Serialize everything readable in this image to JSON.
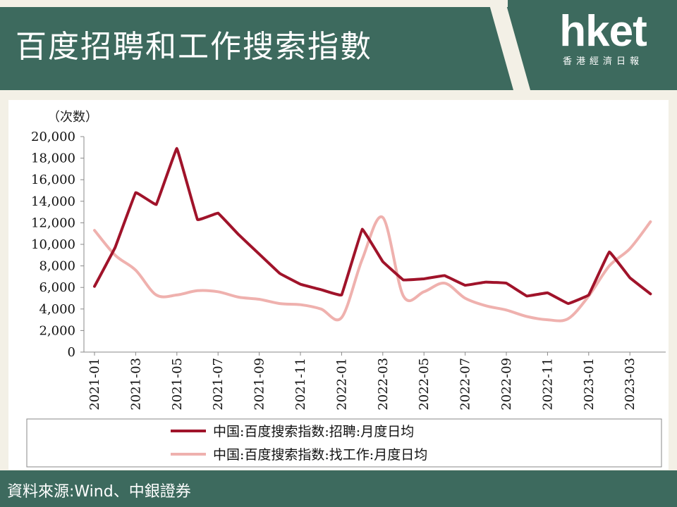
{
  "header": {
    "title": "百度招聘和工作搜索指數",
    "logo_main": "hket",
    "logo_sub": "香港經濟日報"
  },
  "footer": {
    "source": "資料來源:Wind、中銀證券"
  },
  "colors": {
    "header_bg": "#3d6a5e",
    "series_1": "#a0132a",
    "series_2": "#efb1ae"
  },
  "chart_data": {
    "type": "line",
    "unit_label": "（次数）",
    "ylim": [
      0,
      20000
    ],
    "yticks": [
      "0",
      "2,000",
      "4,000",
      "6,000",
      "8,000",
      "10,000",
      "12,000",
      "14,000",
      "16,000",
      "18,000",
      "20,000"
    ],
    "xtick_labels": [
      "2021-01",
      "2021-03",
      "2021-05",
      "2021-07",
      "2021-09",
      "2021-11",
      "2022-01",
      "2022-03",
      "2022-05",
      "2022-07",
      "2022-09",
      "2022-11",
      "2023-01",
      "2023-03"
    ],
    "x": [
      "2021-01",
      "2021-02",
      "2021-03",
      "2021-04",
      "2021-05",
      "2021-06",
      "2021-07",
      "2021-08",
      "2021-09",
      "2021-10",
      "2021-11",
      "2021-12",
      "2022-01",
      "2022-02",
      "2022-03",
      "2022-04",
      "2022-05",
      "2022-06",
      "2022-07",
      "2022-08",
      "2022-09",
      "2022-10",
      "2022-11",
      "2022-12",
      "2023-01",
      "2023-02",
      "2023-03",
      "2023-04"
    ],
    "grid": false,
    "legend_position": "bottom",
    "series": [
      {
        "name": "中国:百度搜索指数:招聘:月度日均",
        "color": "#a0132a",
        "values": [
          6100,
          9700,
          14800,
          13700,
          18900,
          12300,
          12900,
          10900,
          9100,
          7300,
          6300,
          5800,
          5300,
          11400,
          8400,
          6700,
          6800,
          7100,
          6200,
          6500,
          6400,
          5200,
          5500,
          4500,
          5300,
          9300,
          6900,
          5400
        ]
      },
      {
        "name": "中国:百度搜索指数:找工作:月度日均",
        "color": "#efb1ae",
        "values": [
          11300,
          9000,
          7600,
          5300,
          5300,
          5700,
          5600,
          5100,
          4900,
          4500,
          4400,
          4000,
          3200,
          8600,
          12500,
          5200,
          5600,
          6400,
          5000,
          4300,
          3900,
          3300,
          3000,
          3100,
          5200,
          8000,
          9600,
          12100
        ]
      }
    ]
  }
}
